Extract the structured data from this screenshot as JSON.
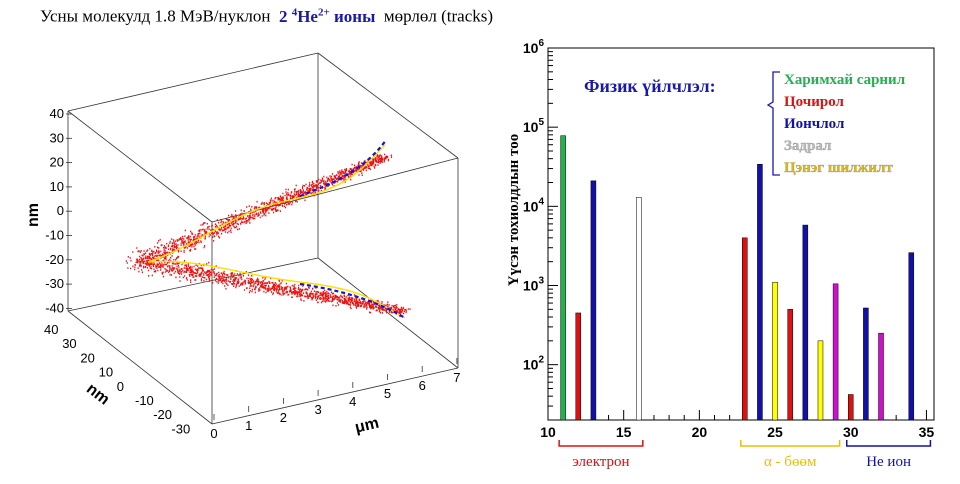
{
  "title": {
    "prefix": "Усны молекулд 1.8 МэВ/нуклон",
    "ion_num": "2",
    "ion_mass": "4",
    "ion_el": "He",
    "ion_charge": "2+",
    "ion_word": "ионы",
    "suffix": "мөрлөл (tracks)"
  },
  "track_plot": {
    "z_label": "nm",
    "y_label": "nm",
    "x_label": "μm",
    "z_ticks": [
      "40",
      "30",
      "20",
      "10",
      "0",
      "-10",
      "-20",
      "-30",
      "-40"
    ],
    "y_ticks": [
      "40",
      "30",
      "20",
      "10",
      "0",
      "-10",
      "-20",
      "-30"
    ],
    "x_ticks": [
      "0",
      "1",
      "2",
      "3",
      "4",
      "5",
      "6",
      "7"
    ]
  },
  "chart_data": {
    "type": "bar",
    "ylabel": "Үүсэн тохиолдлын тоо",
    "xlabel": "",
    "yscale": "log",
    "xlim": [
      10,
      35.5
    ],
    "ylim": [
      20,
      1000000
    ],
    "x_ticks": [
      "10",
      "15",
      "20",
      "25",
      "30",
      "35"
    ],
    "y_ticks": [
      {
        "base": "10",
        "exp": "2"
      },
      {
        "base": "10",
        "exp": "3"
      },
      {
        "base": "10",
        "exp": "4"
      },
      {
        "base": "10",
        "exp": "5"
      },
      {
        "base": "10",
        "exp": "6"
      }
    ],
    "legend_title": "Физик үйлчлэл:",
    "series": [
      {
        "name": "Харимхай сарнил",
        "color": "#22b14c"
      },
      {
        "name": "Цочирол",
        "color": "#dd1111"
      },
      {
        "name": "Иончлол",
        "color": "#1111aa"
      },
      {
        "name": "Задрал",
        "color": "#bbbbbb"
      },
      {
        "name": "Цэнэг шилжилт",
        "color": "#e8b800"
      }
    ],
    "bars": [
      {
        "x": 11,
        "value": 78000,
        "color": "#22b14c"
      },
      {
        "x": 12,
        "value": 450,
        "color": "#dd1111"
      },
      {
        "x": 13,
        "value": 21000,
        "color": "#1111aa"
      },
      {
        "x": 16,
        "value": 13000,
        "color": "#ffffff"
      },
      {
        "x": 23,
        "value": 4000,
        "color": "#dd1111"
      },
      {
        "x": 24,
        "value": 34000,
        "color": "#1111aa"
      },
      {
        "x": 25,
        "value": 1100,
        "color": "#ffff00"
      },
      {
        "x": 26,
        "value": 500,
        "color": "#dd1111"
      },
      {
        "x": 27,
        "value": 5800,
        "color": "#1111aa"
      },
      {
        "x": 28,
        "value": 200,
        "color": "#ffff00"
      },
      {
        "x": 29,
        "value": 1050,
        "color": "#cc11cc"
      },
      {
        "x": 30,
        "value": 42,
        "color": "#dd1111"
      },
      {
        "x": 31,
        "value": 520,
        "color": "#1111aa"
      },
      {
        "x": 32,
        "value": 250,
        "color": "#cc11cc"
      },
      {
        "x": 34,
        "value": 2600,
        "color": "#1111aa"
      }
    ],
    "groups": [
      {
        "label": "электрон",
        "color": "#dd1111",
        "from": 11,
        "to": 16
      },
      {
        "label": "α - бөөм",
        "color": "#e8c000",
        "from": 23,
        "to": 29
      },
      {
        "label": "Не ион",
        "color": "#1111aa",
        "from": 30,
        "to": 35
      }
    ]
  }
}
